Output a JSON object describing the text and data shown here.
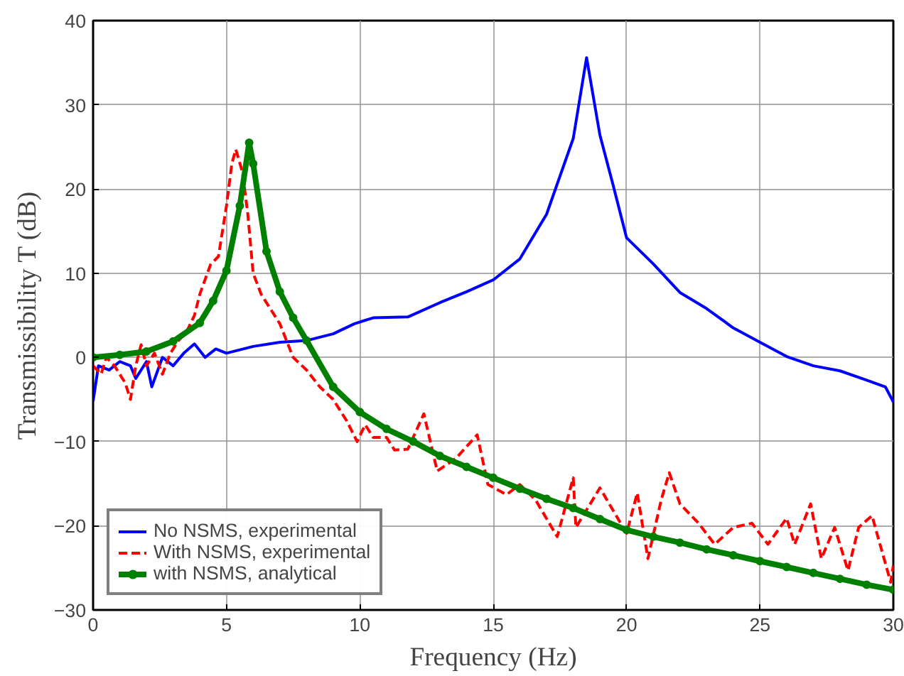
{
  "chart_data": {
    "type": "line",
    "xlabel": "Frequency (Hz)",
    "ylabel": "Transmissibility T (dB)",
    "xlim": [
      0,
      30
    ],
    "ylim": [
      -30,
      40
    ],
    "xticks": [
      0,
      5,
      10,
      15,
      20,
      25,
      30
    ],
    "yticks": [
      -30,
      -20,
      -10,
      0,
      10,
      20,
      30,
      40
    ],
    "grid": true,
    "legend": "bottom left",
    "series": [
      {
        "name": "No NSMS, experimental",
        "color": "#0000ff",
        "line_style": "solid",
        "marker": "none",
        "x": [
          0,
          0.2,
          0.6,
          1,
          1.4,
          1.6,
          2,
          2.2,
          2.6,
          3,
          3.4,
          3.8,
          4.2,
          4.6,
          5,
          6,
          7,
          8,
          9,
          9.8,
          10.5,
          11.8,
          13,
          14,
          15,
          16,
          17,
          18,
          18.5,
          19,
          19.5,
          20,
          21,
          22,
          23,
          24,
          25,
          26,
          27,
          28,
          29,
          29.7,
          30
        ],
        "values": [
          -5.2,
          -1,
          -1.5,
          -0.5,
          -1,
          -2.5,
          -0.5,
          -3.5,
          0,
          -1,
          0.5,
          1.6,
          0,
          1,
          0.5,
          1.3,
          1.8,
          2,
          2.8,
          4,
          4.7,
          4.8,
          6.5,
          7.8,
          9.2,
          11.7,
          17,
          26,
          35.6,
          26.4,
          20.4,
          14.2,
          11.1,
          7.7,
          5.8,
          3.5,
          1.8,
          0.1,
          -1,
          -1.6,
          -2.7,
          -3.5,
          -5.3
        ]
      },
      {
        "name": "With NSMS, experimental",
        "color": "#ff0000",
        "line_style": "dashed",
        "marker": "none",
        "x": [
          0,
          0.3,
          0.5,
          0.8,
          1.2,
          1.4,
          1.6,
          1.8,
          2,
          2.3,
          2.6,
          2.9,
          3.2,
          3.5,
          3.8,
          4,
          4.4,
          4.7,
          5,
          5.2,
          5.35,
          5.6,
          5.8,
          6,
          6.3,
          6.6,
          7,
          7.5,
          8,
          8.5,
          9,
          9.5,
          9.9,
          10.2,
          10.5,
          11,
          11.3,
          11.8,
          12.4,
          12.9,
          13.6,
          14.4,
          14.8,
          15.5,
          16,
          16.6,
          17.4,
          18,
          18.1,
          19,
          20,
          20.4,
          20.8,
          21.3,
          21.6,
          22,
          22.7,
          23.3,
          24,
          24.7,
          25.3,
          26,
          26.3,
          26.9,
          27.3,
          27.8,
          28.3,
          28.7,
          29.2,
          29.5,
          29.9,
          30
        ],
        "values": [
          -1,
          -2,
          0,
          -1,
          -3,
          -5,
          -1,
          1.5,
          -1,
          0.5,
          -2,
          0.5,
          2,
          3,
          5,
          7.5,
          11,
          12,
          18,
          23,
          24.7,
          22,
          17,
          10,
          7.5,
          6,
          4,
          0,
          -1.5,
          -3.5,
          -5,
          -7.5,
          -10,
          -8,
          -9.5,
          -9.5,
          -11,
          -10.9,
          -6.7,
          -13.5,
          -12,
          -9.2,
          -15.1,
          -16.3,
          -15.1,
          -17,
          -21.3,
          -14.3,
          -20.2,
          -15.5,
          -20.9,
          -16.1,
          -23.9,
          -16.9,
          -13.7,
          -17.4,
          -19.7,
          -22.2,
          -20.2,
          -19.7,
          -22.2,
          -19.1,
          -22.2,
          -17.4,
          -23.9,
          -20.2,
          -25.3,
          -20.2,
          -18.8,
          -22.2,
          -26.7,
          -24.7
        ]
      },
      {
        "name": "with NSMS, analytical",
        "color": "#008000",
        "line_style": "solid",
        "marker": "circle",
        "x": [
          0,
          1,
          2,
          3,
          4,
          4.5,
          5,
          5.5,
          5.85,
          6,
          6.5,
          7,
          7.5,
          8,
          9,
          10,
          11,
          12,
          13,
          14,
          15,
          16,
          17,
          18,
          19,
          20,
          21,
          22,
          23,
          24,
          25,
          26,
          27,
          28,
          29,
          30
        ],
        "values": [
          0,
          0.3,
          0.7,
          1.9,
          4.1,
          6.7,
          10.3,
          18,
          25.5,
          23,
          12.6,
          7.8,
          4.7,
          2,
          -3.5,
          -6.5,
          -8.5,
          -10,
          -11.7,
          -13,
          -14.3,
          -15.6,
          -16.8,
          -17.9,
          -19.2,
          -20.5,
          -21.3,
          -22,
          -22.8,
          -23.5,
          -24.2,
          -24.9,
          -25.6,
          -26.3,
          -27,
          -27.6
        ]
      }
    ]
  }
}
